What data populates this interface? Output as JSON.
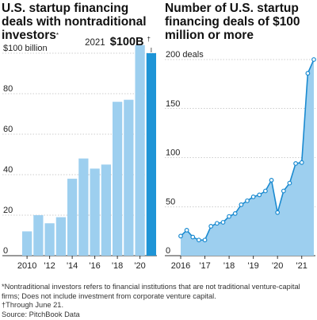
{
  "titles": {
    "left": "U.S. startup financing deals with nontraditional investors",
    "left_mark": "*",
    "right": "Number of U.S. startup financing deals of $100 million or more"
  },
  "callout": {
    "year": "2021",
    "value": "$100B",
    "mark": "†"
  },
  "footnotes": {
    "note": "*Nontraditional investors refers to financial institutions that are not traditional venture-capital firms; Does not include investment from corporate venture capital.",
    "through": "†Through June 21.",
    "source": "Source: PitchBook Data"
  },
  "colors": {
    "bar": "#9dcfef",
    "bar_highlight": "#1e94d6",
    "area_fill": "#9dcfef",
    "line": "#1a8ad0",
    "marker_fill": "#ffffff",
    "grid": "#999999",
    "axis": "#333333"
  },
  "chart_data": [
    {
      "type": "bar",
      "title": "U.S. startup financing deals with nontraditional investors*",
      "categories": [
        "2010",
        "2011",
        "2012",
        "2013",
        "2014",
        "2015",
        "2016",
        "2017",
        "2018",
        "2019",
        "2020",
        "2021"
      ],
      "values": [
        12,
        20,
        16,
        19,
        38,
        48,
        43,
        45,
        76,
        77,
        104,
        100
      ],
      "highlight_index": 11,
      "ylim": [
        0,
        100
      ],
      "yticks": [
        0,
        20,
        40,
        60,
        80,
        100
      ],
      "ytick_labels": [
        "0",
        "20",
        "40",
        "60",
        "80",
        "$100 billion"
      ],
      "xtick_labels": [
        "2010",
        "'12",
        "'14",
        "'16",
        "'18",
        "'20"
      ],
      "xtick_positions": [
        0,
        2,
        4,
        6,
        8,
        10
      ],
      "grid": true
    },
    {
      "type": "area",
      "title": "Number of U.S. startup financing deals of $100 million or more",
      "x_start": 2016,
      "points_per_year": 4,
      "series": [
        {
          "values": [
            20,
            26,
            19,
            16,
            16,
            30,
            33,
            34,
            40,
            43,
            52,
            56,
            60,
            62,
            66,
            77,
            44,
            66,
            74,
            94,
            95,
            186,
            200
          ]
        }
      ],
      "ylim": [
        0,
        200
      ],
      "yticks": [
        0,
        50,
        100,
        150,
        200
      ],
      "ytick_labels": [
        "0",
        "50",
        "100",
        "150",
        "200 deals"
      ],
      "xtick_labels": [
        "2016",
        "'17",
        "'18",
        "'19",
        "'20",
        "'21"
      ],
      "xtick_years": [
        2016,
        2017,
        2018,
        2019,
        2020,
        2021
      ],
      "grid": true
    }
  ]
}
